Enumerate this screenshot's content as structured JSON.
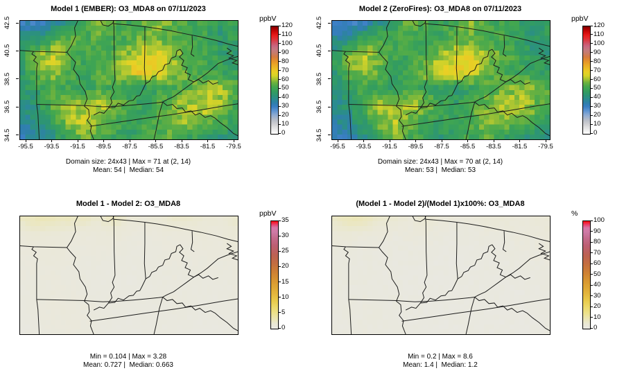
{
  "chart_data": [
    {
      "type": "heatmap",
      "title": "Model 1 (EMBER): O3_MDA8 on 07/11/2023",
      "stats_line1": "Domain size: 24x43 | Max = 71 at (2, 14)",
      "stats_line2": "Mean: 54 |  Median: 54",
      "colorbar": {
        "unit": "ppbV",
        "ticks": [
          0,
          10,
          20,
          30,
          40,
          50,
          60,
          70,
          80,
          90,
          100,
          110,
          120
        ],
        "scale": "ppbv"
      },
      "x_ticks": [
        "-95.5",
        "-93.5",
        "-91.5",
        "-89.5",
        "-87.5",
        "-85.5",
        "-83.5",
        "-81.5",
        "-79.5"
      ],
      "y_ticks": [
        "42.5",
        "40.5",
        "38.5",
        "36.5",
        "34.5"
      ],
      "domain_rows": 24,
      "domain_cols": 43,
      "grid_rows": 8,
      "grid_cols": 15,
      "values": [
        [
          33,
          31,
          35,
          45,
          52,
          58,
          54,
          51,
          55,
          61,
          56,
          52,
          50,
          46,
          51
        ],
        [
          40,
          44,
          52,
          55,
          52,
          54,
          51,
          53,
          58,
          56,
          53,
          54,
          50,
          44,
          49
        ],
        [
          48,
          60,
          65,
          58,
          51,
          50,
          55,
          61,
          66,
          69,
          60,
          56,
          53,
          48,
          44
        ],
        [
          46,
          56,
          60,
          55,
          50,
          54,
          60,
          66,
          71,
          66,
          60,
          54,
          50,
          50,
          48
        ],
        [
          44,
          48,
          52,
          50,
          48,
          52,
          50,
          47,
          46,
          50,
          52,
          56,
          60,
          62,
          55
        ],
        [
          40,
          46,
          55,
          62,
          58,
          64,
          60,
          52,
          48,
          54,
          58,
          62,
          64,
          60,
          52
        ],
        [
          37,
          40,
          50,
          60,
          64,
          58,
          52,
          48,
          52,
          55,
          60,
          62,
          58,
          54,
          48
        ],
        [
          34,
          36,
          42,
          52,
          58,
          54,
          50,
          46,
          50,
          52,
          55,
          50,
          46,
          44,
          42
        ]
      ]
    },
    {
      "type": "heatmap",
      "title": "Model 2 (ZeroFires): O3_MDA8 on 07/11/2023",
      "stats_line1": "Domain size: 24x43 | Max = 70 at (2, 14)",
      "stats_line2": "Mean: 53 |  Median: 53",
      "colorbar": {
        "unit": "ppbV",
        "ticks": [
          0,
          10,
          20,
          30,
          40,
          50,
          60,
          70,
          80,
          90,
          100,
          110,
          120
        ],
        "scale": "ppbv"
      },
      "x_ticks": [
        "-95.5",
        "-93.5",
        "-91.5",
        "-89.5",
        "-87.5",
        "-85.5",
        "-83.5",
        "-81.5",
        "-79.5"
      ],
      "y_ticks": [
        "42.5",
        "40.5",
        "38.5",
        "36.5",
        "34.5"
      ],
      "domain_rows": 24,
      "domain_cols": 43,
      "grid_rows": 8,
      "grid_cols": 15,
      "values": [
        [
          30,
          28,
          32,
          42,
          50,
          56,
          52,
          49,
          53,
          59,
          54,
          50,
          48,
          44,
          49
        ],
        [
          38,
          42,
          50,
          53,
          50,
          52,
          49,
          51,
          56,
          54,
          51,
          52,
          48,
          42,
          47
        ],
        [
          47,
          59,
          64,
          57,
          50,
          49,
          54,
          60,
          65,
          68,
          59,
          55,
          52,
          47,
          43
        ],
        [
          45,
          55,
          59,
          54,
          49,
          53,
          59,
          65,
          70,
          65,
          59,
          53,
          49,
          49,
          47
        ],
        [
          43,
          47,
          51,
          49,
          47,
          51,
          49,
          46,
          45,
          49,
          51,
          55,
          59,
          61,
          54
        ],
        [
          39,
          45,
          54,
          61,
          57,
          63,
          59,
          51,
          47,
          53,
          57,
          61,
          63,
          59,
          51
        ],
        [
          36,
          39,
          49,
          59,
          63,
          57,
          51,
          47,
          51,
          54,
          59,
          61,
          57,
          53,
          47
        ],
        [
          33,
          35,
          41,
          51,
          57,
          53,
          49,
          45,
          49,
          51,
          54,
          49,
          45,
          43,
          41
        ]
      ]
    },
    {
      "type": "heatmap",
      "title": "Model 1 - Model 2: O3_MDA8",
      "stats_line1": "Min = 0.104 | Max = 3.28",
      "stats_line2": "Mean: 0.727 |  Median: 0.663",
      "colorbar": {
        "unit": "ppbV",
        "ticks": [
          0,
          5,
          10,
          15,
          20,
          25,
          30,
          35
        ],
        "scale": "diff"
      },
      "domain_rows": 24,
      "domain_cols": 43,
      "grid_rows": 8,
      "grid_cols": 15,
      "values": [
        [
          2.2,
          2.8,
          2.6,
          2.4,
          2.2,
          1.8,
          2.4,
          1.5,
          1.2,
          1.5,
          2.0,
          1.8,
          1.5,
          1.3,
          1.8
        ],
        [
          1.2,
          1.5,
          1.3,
          1.1,
          0.9,
          1.0,
          1.2,
          0.8,
          0.7,
          0.8,
          0.9,
          1.0,
          1.1,
          1.0,
          1.5
        ],
        [
          0.8,
          0.9,
          1.0,
          0.8,
          0.7,
          0.8,
          0.7,
          0.6,
          0.6,
          0.7,
          0.8,
          0.7,
          0.9,
          0.8,
          1.0
        ],
        [
          0.7,
          0.8,
          0.9,
          0.7,
          0.6,
          0.6,
          0.5,
          0.5,
          0.6,
          0.6,
          0.7,
          0.6,
          0.7,
          0.7,
          0.8
        ],
        [
          0.6,
          0.7,
          0.8,
          0.7,
          0.6,
          0.5,
          0.5,
          0.4,
          0.5,
          0.6,
          0.6,
          0.5,
          0.6,
          0.6,
          0.7
        ],
        [
          0.5,
          0.7,
          0.9,
          0.8,
          0.7,
          0.6,
          0.5,
          0.5,
          0.5,
          0.6,
          0.7,
          0.6,
          0.5,
          0.5,
          0.6
        ],
        [
          0.4,
          0.6,
          0.8,
          0.9,
          0.8,
          0.6,
          0.5,
          0.4,
          0.5,
          0.5,
          0.6,
          0.5,
          0.4,
          0.4,
          0.5
        ],
        [
          0.3,
          0.5,
          0.7,
          0.8,
          0.7,
          0.5,
          0.4,
          0.3,
          0.4,
          0.5,
          0.5,
          0.4,
          0.3,
          0.3,
          0.4
        ]
      ]
    },
    {
      "type": "heatmap",
      "title": "(Model 1 - Model 2)/(Model 1)x100%: O3_MDA8",
      "stats_line1": "Min = 0.2 | Max = 8.6",
      "stats_line2": "Mean: 1.4 |  Median: 1.2",
      "colorbar": {
        "unit": "%",
        "ticks": [
          0,
          10,
          20,
          30,
          40,
          50,
          60,
          70,
          80,
          90,
          100
        ],
        "scale": "pct"
      },
      "domain_rows": 24,
      "domain_cols": 43,
      "grid_rows": 8,
      "grid_cols": 15,
      "values": [
        [
          6.5,
          8.2,
          7.4,
          5.4,
          4.2,
          3.1,
          4.4,
          2.9,
          2.2,
          2.5,
          3.6,
          3.5,
          3.0,
          2.8,
          3.5
        ],
        [
          3.0,
          3.4,
          2.5,
          2.0,
          1.7,
          1.9,
          2.4,
          1.5,
          1.2,
          1.4,
          1.7,
          1.9,
          2.2,
          2.3,
          3.1
        ],
        [
          1.7,
          1.5,
          1.5,
          1.4,
          1.4,
          1.6,
          1.3,
          1.0,
          0.9,
          1.0,
          1.3,
          1.3,
          1.7,
          1.7,
          2.3
        ],
        [
          1.5,
          1.4,
          1.5,
          1.3,
          1.2,
          1.1,
          0.8,
          0.8,
          0.8,
          0.9,
          1.2,
          1.1,
          1.4,
          1.4,
          1.7
        ],
        [
          1.4,
          1.5,
          1.5,
          1.4,
          1.3,
          1.0,
          1.0,
          0.9,
          1.1,
          1.2,
          1.2,
          0.9,
          1.0,
          1.0,
          1.3
        ],
        [
          1.3,
          1.5,
          1.6,
          1.3,
          1.2,
          0.9,
          0.8,
          1.0,
          1.0,
          1.1,
          1.2,
          1.0,
          0.8,
          0.8,
          1.2
        ],
        [
          1.1,
          1.5,
          1.6,
          1.5,
          1.3,
          1.0,
          1.0,
          0.8,
          1.0,
          0.9,
          1.0,
          0.8,
          0.7,
          0.7,
          1.0
        ],
        [
          0.9,
          1.4,
          1.7,
          1.5,
          1.2,
          0.9,
          0.8,
          0.7,
          0.8,
          1.0,
          0.9,
          0.8,
          0.7,
          0.7,
          1.0
        ]
      ]
    }
  ],
  "colorscales": {
    "ppbv": {
      "min": 0,
      "max": 120,
      "stops": [
        [
          0,
          "#FEFEFE"
        ],
        [
          5,
          "#E9E9E9"
        ],
        [
          10,
          "#D2D2D4"
        ],
        [
          15,
          "#B8BEC9"
        ],
        [
          20,
          "#94AED2"
        ],
        [
          25,
          "#6397D2"
        ],
        [
          30,
          "#3A7EC4"
        ],
        [
          34,
          "#2F7FAC"
        ],
        [
          38,
          "#2B8A94"
        ],
        [
          42,
          "#2C9378"
        ],
        [
          47,
          "#339D60"
        ],
        [
          52,
          "#43A74F"
        ],
        [
          57,
          "#6BB23F"
        ],
        [
          61,
          "#A6C433"
        ],
        [
          65,
          "#D8D428"
        ],
        [
          69,
          "#E9D125"
        ],
        [
          73,
          "#EBBC25"
        ],
        [
          78,
          "#EAA426"
        ],
        [
          82,
          "#E38E2C"
        ],
        [
          86,
          "#D67B42"
        ],
        [
          90,
          "#C87C69"
        ],
        [
          94,
          "#C57A80"
        ],
        [
          98,
          "#C96781"
        ],
        [
          102,
          "#D24F62"
        ],
        [
          106,
          "#DE3338"
        ],
        [
          110,
          "#E81C1C"
        ],
        [
          114,
          "#D00A0A"
        ],
        [
          118,
          "#A40000"
        ],
        [
          120,
          "#7C0000"
        ]
      ]
    },
    "diff": {
      "min": 0,
      "max": 35,
      "stops": [
        [
          0,
          "#E9E8E2"
        ],
        [
          1.5,
          "#EAE8D6"
        ],
        [
          3,
          "#EBE6B4"
        ],
        [
          5,
          "#EDE28C"
        ],
        [
          7,
          "#ECD968"
        ],
        [
          9,
          "#E9CB4B"
        ],
        [
          12,
          "#E2B23A"
        ],
        [
          15,
          "#DA9B32"
        ],
        [
          18,
          "#D08434"
        ],
        [
          21,
          "#C46F40"
        ],
        [
          24,
          "#BC6154"
        ],
        [
          27,
          "#BD5F72"
        ],
        [
          29.5,
          "#C46A8C"
        ],
        [
          31.5,
          "#CE7AA6"
        ],
        [
          33,
          "#D878A8"
        ],
        [
          34,
          "#E8426E"
        ],
        [
          35,
          "#FA0D16"
        ]
      ]
    },
    "pct": {
      "min": 0,
      "max": 100,
      "stops": [
        [
          0,
          "#E9E8E2"
        ],
        [
          4,
          "#EAE8D6"
        ],
        [
          9,
          "#EBE6B4"
        ],
        [
          14,
          "#EDE28C"
        ],
        [
          20,
          "#ECD968"
        ],
        [
          26,
          "#E9CB4B"
        ],
        [
          34,
          "#E2B23A"
        ],
        [
          43,
          "#DA9B32"
        ],
        [
          51,
          "#D08434"
        ],
        [
          60,
          "#C46F40"
        ],
        [
          69,
          "#BC6154"
        ],
        [
          77,
          "#BD5F72"
        ],
        [
          84,
          "#C46A8C"
        ],
        [
          90,
          "#CE7AA6"
        ],
        [
          94,
          "#D878A8"
        ],
        [
          97,
          "#E8426E"
        ],
        [
          100,
          "#FA0D16"
        ]
      ]
    }
  },
  "layout_hints": {
    "arrangement": "2x2 panel grid",
    "noise_amp": [
      4.5,
      4.5,
      0.12,
      0.5
    ],
    "legend_position": "right of each map",
    "grid_lines": "state boundaries overlay"
  }
}
